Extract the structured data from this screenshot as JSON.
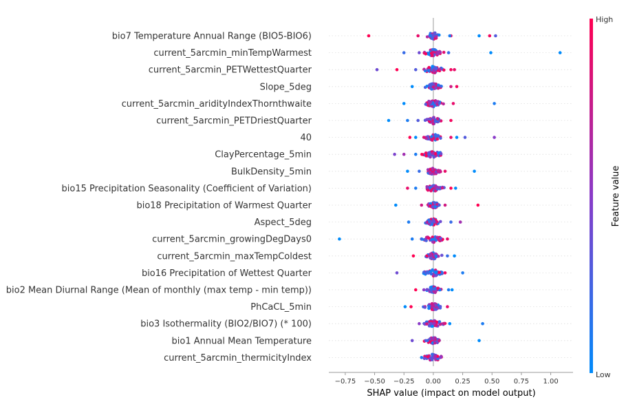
{
  "chart_data": {
    "type": "scatter",
    "subtype": "beeswarm",
    "title": "",
    "xlabel": "SHAP value (impact on model output)",
    "xlim": [
      -0.89,
      1.19
    ],
    "xticks": [
      -0.75,
      -0.5,
      -0.25,
      0.0,
      0.25,
      0.5,
      0.75,
      1.0
    ],
    "xtick_labels": [
      "−0.75",
      "−0.50",
      "−0.25",
      "0.00",
      "0.25",
      "0.50",
      "0.75",
      "1.00"
    ],
    "colorbar": {
      "title": "Feature value",
      "high": "High",
      "low": "Low"
    },
    "colors": {
      "low": "#008bfb",
      "mid": "#8a3bc8",
      "high": "#ff0052",
      "axis": "#999999",
      "zero": "#aaaaaa",
      "grid": "#dddddd"
    },
    "features": [
      {
        "name": "bio7 Temperature Annual Range (BIO5-BIO6)",
        "outliers": [
          [
            -0.55,
            1.0
          ],
          [
            -0.13,
            0.9
          ],
          [
            0.15,
            0.85
          ],
          [
            0.39,
            0.0
          ],
          [
            0.48,
            0.95
          ],
          [
            0.53,
            0.3
          ],
          [
            0.14,
            0.1
          ]
        ]
      },
      {
        "name": "current_5arcmin_minTempWarmest",
        "outliers": [
          [
            -0.25,
            0.2
          ],
          [
            -0.12,
            0.4
          ],
          [
            0.13,
            0.2
          ],
          [
            0.49,
            0.0
          ],
          [
            1.08,
            0.0
          ]
        ]
      },
      {
        "name": "current_5arcmin_PETWettestQuarter",
        "outliers": [
          [
            -0.48,
            0.4
          ],
          [
            -0.31,
            1.0
          ],
          [
            -0.15,
            0.3
          ],
          [
            0.15,
            0.95
          ],
          [
            0.18,
            0.9
          ]
        ]
      },
      {
        "name": "Slope_5deg",
        "outliers": [
          [
            -0.18,
            0.0
          ],
          [
            0.2,
            0.95
          ],
          [
            0.15,
            0.8
          ]
        ]
      },
      {
        "name": "current_5arcmin_aridityIndexThornthwaite",
        "outliers": [
          [
            -0.25,
            0.0
          ],
          [
            0.17,
            0.9
          ],
          [
            0.52,
            0.1
          ]
        ]
      },
      {
        "name": "current_5arcmin_PETDriestQuarter",
        "outliers": [
          [
            -0.38,
            0.0
          ],
          [
            -0.22,
            0.1
          ],
          [
            -0.13,
            0.3
          ],
          [
            0.15,
            0.95
          ]
        ]
      },
      {
        "name": "40",
        "outliers": [
          [
            -0.2,
            1.0
          ],
          [
            -0.15,
            0.0
          ],
          [
            0.2,
            0.0
          ],
          [
            0.27,
            0.3
          ],
          [
            0.52,
            0.5
          ],
          [
            0.15,
            0.9
          ]
        ]
      },
      {
        "name": "ClayPercentage_5min",
        "outliers": [
          [
            -0.33,
            0.45
          ],
          [
            -0.25,
            0.6
          ],
          [
            -0.15,
            0.1
          ]
        ]
      },
      {
        "name": "BulkDensity_5min",
        "outliers": [
          [
            -0.22,
            0.0
          ],
          [
            -0.12,
            0.2
          ],
          [
            0.1,
            0.9
          ],
          [
            0.35,
            0.0
          ]
        ]
      },
      {
        "name": "bio15 Precipitation Seasonality (Coefficient of Variation)",
        "outliers": [
          [
            -0.22,
            0.9
          ],
          [
            -0.15,
            0.1
          ],
          [
            0.15,
            1.0
          ],
          [
            0.19,
            0.0
          ]
        ]
      },
      {
        "name": "bio18 Precipitation of Warmest Quarter",
        "outliers": [
          [
            -0.32,
            0.0
          ],
          [
            -0.1,
            0.8
          ],
          [
            0.1,
            0.8
          ],
          [
            0.38,
            1.0
          ]
        ]
      },
      {
        "name": "Aspect_5deg",
        "outliers": [
          [
            -0.21,
            0.1
          ],
          [
            0.15,
            0.2
          ],
          [
            0.23,
            0.6
          ]
        ]
      },
      {
        "name": "current_5arcmin_growingDegDays0",
        "outliers": [
          [
            -0.8,
            0.0
          ],
          [
            -0.18,
            0.1
          ],
          [
            -0.1,
            0.2
          ],
          [
            0.12,
            0.9
          ]
        ]
      },
      {
        "name": "current_5arcmin_maxTempColdest",
        "outliers": [
          [
            -0.17,
            1.0
          ],
          [
            0.12,
            0.2
          ],
          [
            0.18,
            0.0
          ]
        ]
      },
      {
        "name": "bio16 Precipitation of Wettest Quarter",
        "outliers": [
          [
            -0.31,
            0.4
          ],
          [
            -0.05,
            0.2
          ],
          [
            0.1,
            0.95
          ],
          [
            0.25,
            0.1
          ]
        ]
      },
      {
        "name": "bio2 Mean Diurnal Range (Mean of monthly (max temp - min temp))",
        "outliers": [
          [
            -0.15,
            1.0
          ],
          [
            -0.08,
            0.5
          ],
          [
            0.13,
            0.1
          ],
          [
            0.16,
            0.0
          ]
        ]
      },
      {
        "name": "PhCaCL_5min",
        "outliers": [
          [
            -0.24,
            0.0
          ],
          [
            -0.19,
            1.0
          ],
          [
            0.12,
            0.9
          ]
        ]
      },
      {
        "name": "bio3 Isothermality (BIO2/BIO7) (* 100)",
        "outliers": [
          [
            -0.12,
            0.5
          ],
          [
            -0.02,
            0.4
          ],
          [
            0.09,
            0.8
          ],
          [
            0.14,
            0.0
          ],
          [
            0.42,
            0.1
          ]
        ]
      },
      {
        "name": "bio1 Annual Mean Temperature",
        "outliers": [
          [
            -0.18,
            0.4
          ],
          [
            -0.05,
            0.2
          ],
          [
            0.05,
            0.8
          ],
          [
            0.39,
            0.0
          ]
        ]
      },
      {
        "name": "current_5arcmin_thermicityIndex",
        "outliers": [
          [
            -0.1,
            0.1
          ],
          [
            0.06,
            0.5
          ]
        ]
      }
    ]
  }
}
